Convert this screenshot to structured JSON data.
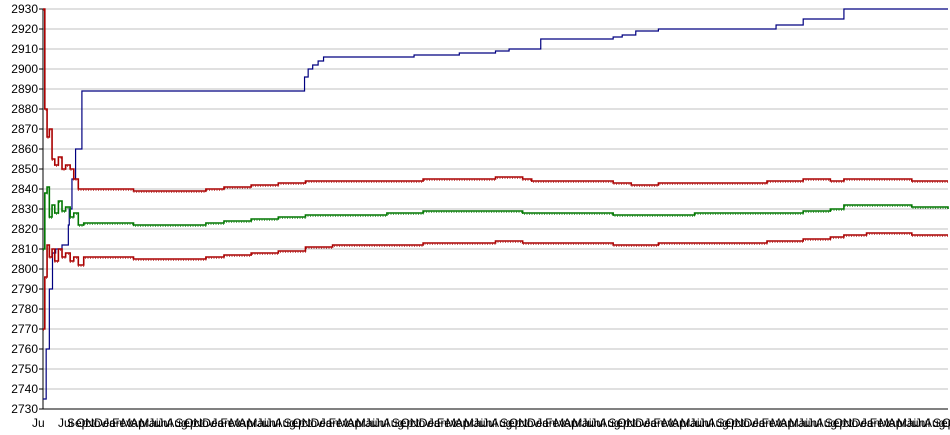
{
  "chart_data": {
    "type": "line",
    "title": "",
    "xlabel": "",
    "ylabel": "",
    "ylim": [
      2730,
      2930
    ],
    "y_ticks": [
      2730,
      2740,
      2750,
      2760,
      2770,
      2780,
      2790,
      2800,
      2810,
      2820,
      2830,
      2840,
      2850,
      2860,
      2870,
      2880,
      2890,
      2900,
      2910,
      2920,
      2930
    ],
    "grid": "horizontal",
    "legend": "none",
    "x_range": [
      0,
      100
    ],
    "x_tick_labels": [
      "Ju",
      "Jui",
      "Sep",
      "Oct",
      "Nov",
      "Dec",
      "Jan",
      "Fev",
      "Mar",
      "Apr",
      "Mai",
      "Jun",
      "Jul",
      "Aug",
      "Sep",
      "Oct",
      "Nov",
      "Dec",
      "Jan",
      "Fev",
      "Mar",
      "Apr",
      "Mai",
      "Jun",
      "Jul",
      "Aug",
      "Sep",
      "Oct",
      "Nov",
      "Dec",
      "Jan",
      "Fev",
      "Mar",
      "Apr",
      "Mai",
      "Jun",
      "Jul",
      "Aug",
      "Sep",
      "Oct",
      "Nov",
      "Dec",
      "Jan",
      "Fev",
      "Mar",
      "Apr",
      "Mai",
      "Jun",
      "Jul",
      "Aug",
      "Sep",
      "Oct",
      "Nov",
      "Dec",
      "Jan",
      "Fev",
      "Mar",
      "Apr",
      "Mai",
      "Jun",
      "Jul",
      "Aug",
      "Sep",
      "Oct",
      "Nov",
      "Dec",
      "Jan",
      "Fev",
      "Mar",
      "Apr",
      "Mai",
      "Jun",
      "Jul",
      "Aug",
      "Sep",
      "Oct",
      "Nov",
      "Dec",
      "Jan",
      "Fev",
      "Mar",
      "Apr",
      "Mai",
      "Jun",
      "Jul",
      "Aug",
      "Sep",
      "Oct",
      "Nov",
      "Dec",
      "Jan",
      "Fev",
      "Mar",
      "Apr",
      "Mai",
      "Jun",
      "Jul",
      "Aug",
      "Sep",
      "Oct"
    ],
    "series": [
      {
        "color": "#000080",
        "x": [
          0,
          0.35,
          0.7,
          1.05,
          1.4,
          1.75,
          2.1,
          2.45,
          2.8,
          2.9,
          3.2,
          3.6,
          4.3,
          8,
          15,
          20,
          25,
          28.5,
          28.9,
          29.3,
          29.8,
          30.4,
          31.0,
          33,
          36,
          41,
          46,
          50,
          51.5,
          55,
          58,
          63,
          64,
          65.5,
          68,
          72,
          76,
          80,
          81,
          83,
          84,
          87,
          88.5,
          94,
          100
        ],
        "y": [
          2735,
          2760,
          2790,
          2808,
          2810,
          2810,
          2812,
          2812,
          2822,
          2830,
          2845,
          2860,
          2889,
          2889,
          2889,
          2889,
          2889,
          2889,
          2896,
          2900,
          2902,
          2904,
          2906,
          2906,
          2906,
          2907,
          2908,
          2909,
          2910,
          2915,
          2915,
          2916,
          2917,
          2919,
          2920,
          2920,
          2920,
          2920,
          2922,
          2922,
          2925,
          2925,
          2930,
          2930,
          2930
        ]
      },
      {
        "color": "#aa0000",
        "x": [
          0,
          0.2,
          0.45,
          0.7,
          1.0,
          1.3,
          1.7,
          2.1,
          2.5,
          3.0,
          3.4,
          3.9,
          4.5,
          6,
          8,
          10,
          12,
          15,
          18,
          20,
          23,
          26,
          29,
          32,
          35,
          38,
          42,
          46,
          50,
          53,
          54,
          56,
          60,
          63,
          65,
          68,
          72,
          76,
          80,
          84,
          87,
          88.5,
          91,
          94,
          96,
          100
        ],
        "y": [
          2930,
          2880,
          2866,
          2870,
          2855,
          2852,
          2856,
          2850,
          2852,
          2850,
          2845,
          2840,
          2840,
          2840,
          2840,
          2839,
          2839,
          2839,
          2840,
          2841,
          2842,
          2843,
          2844,
          2844,
          2844,
          2844,
          2845,
          2845,
          2846,
          2845,
          2844,
          2844,
          2844,
          2843,
          2842,
          2843,
          2843,
          2843,
          2844,
          2845,
          2844,
          2845,
          2845,
          2845,
          2844,
          2844
        ]
      },
      {
        "color": "#007700",
        "x": [
          0,
          0.2,
          0.45,
          0.7,
          1.0,
          1.3,
          1.7,
          2.1,
          2.5,
          3.0,
          3.4,
          3.9,
          4.5,
          6,
          8,
          10,
          12,
          15,
          18,
          20,
          23,
          26,
          29,
          32,
          35,
          38,
          42,
          46,
          50,
          53,
          54,
          56,
          60,
          63,
          65,
          68,
          72,
          76,
          80,
          84,
          87,
          88.5,
          91,
          94,
          96,
          100
        ],
        "y": [
          2810,
          2838,
          2841,
          2826,
          2832,
          2828,
          2834,
          2829,
          2831,
          2826,
          2828,
          2822,
          2823,
          2823,
          2823,
          2822,
          2822,
          2822,
          2823,
          2824,
          2825,
          2826,
          2827,
          2827,
          2827,
          2828,
          2829,
          2829,
          2829,
          2828,
          2828,
          2828,
          2828,
          2827,
          2827,
          2827,
          2828,
          2828,
          2828,
          2829,
          2830,
          2832,
          2832,
          2832,
          2831,
          2830
        ]
      },
      {
        "color": "#aa0000",
        "x": [
          0,
          0.2,
          0.45,
          0.7,
          1.0,
          1.3,
          1.7,
          2.1,
          2.5,
          3.0,
          3.4,
          3.9,
          4.5,
          6,
          8,
          10,
          12,
          15,
          18,
          20,
          23,
          26,
          29,
          32,
          35,
          38,
          42,
          46,
          50,
          53,
          54,
          56,
          60,
          63,
          65,
          68,
          72,
          76,
          80,
          84,
          87,
          88.5,
          91,
          94,
          96,
          100
        ],
        "y": [
          2770,
          2796,
          2812,
          2806,
          2810,
          2804,
          2810,
          2806,
          2808,
          2804,
          2806,
          2802,
          2806,
          2806,
          2806,
          2805,
          2805,
          2805,
          2806,
          2807,
          2808,
          2809,
          2811,
          2812,
          2812,
          2812,
          2813,
          2813,
          2814,
          2813,
          2813,
          2813,
          2813,
          2812,
          2812,
          2813,
          2813,
          2813,
          2814,
          2815,
          2816,
          2817,
          2818,
          2818,
          2817,
          2817
        ]
      }
    ]
  }
}
